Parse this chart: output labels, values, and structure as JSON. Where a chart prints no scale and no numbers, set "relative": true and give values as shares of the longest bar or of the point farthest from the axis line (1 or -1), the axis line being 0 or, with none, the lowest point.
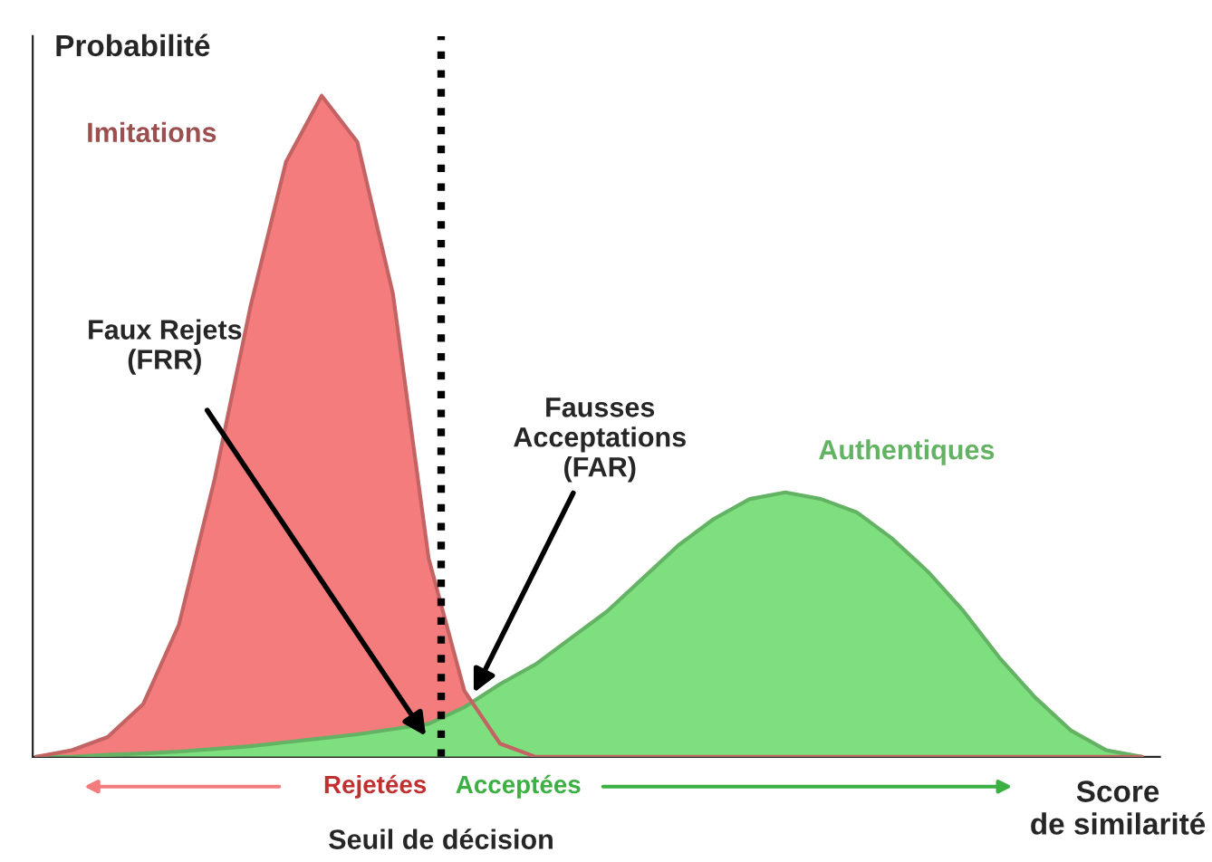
{
  "chart_data": {
    "type": "area",
    "relative": true,
    "ylabel": "Probabilité",
    "xlabel": "Score\nde similarité",
    "categories": [
      null,
      null,
      null,
      null,
      null,
      null,
      null,
      null,
      null,
      null,
      null,
      null,
      null,
      null,
      null,
      null,
      null,
      null,
      null,
      null,
      null,
      null,
      null,
      null,
      null,
      null,
      null,
      null,
      null,
      null,
      null,
      null
    ],
    "series": [
      {
        "name": "Imitations",
        "color": "#f47c7c",
        "values": [
          0,
          0.01,
          0.03,
          0.08,
          0.2,
          0.42,
          0.68,
          0.9,
          1.0,
          0.93,
          0.7,
          0.3,
          0.1,
          0.02,
          0,
          0,
          0,
          0,
          0,
          0,
          0,
          0,
          0,
          0,
          0,
          0,
          0,
          0,
          0,
          0,
          0,
          0
        ]
      },
      {
        "name": "Authentiques",
        "color": "#7ddf7d",
        "values": [
          0,
          0,
          0.003,
          0.005,
          0.008,
          0.012,
          0.016,
          0.022,
          0.028,
          0.034,
          0.042,
          0.05,
          0.075,
          0.11,
          0.14,
          0.18,
          0.22,
          0.27,
          0.32,
          0.36,
          0.39,
          0.4,
          0.39,
          0.37,
          0.33,
          0.28,
          0.22,
          0.15,
          0.09,
          0.04,
          0.01,
          0
        ]
      }
    ],
    "annotations": [
      "Faux Rejets\n(FRR)",
      "Fausses\nAcceptations\n(FAR)",
      "Rejetées",
      "Acceptées",
      "Seuil de décision"
    ],
    "grid": false,
    "legend": false
  }
}
